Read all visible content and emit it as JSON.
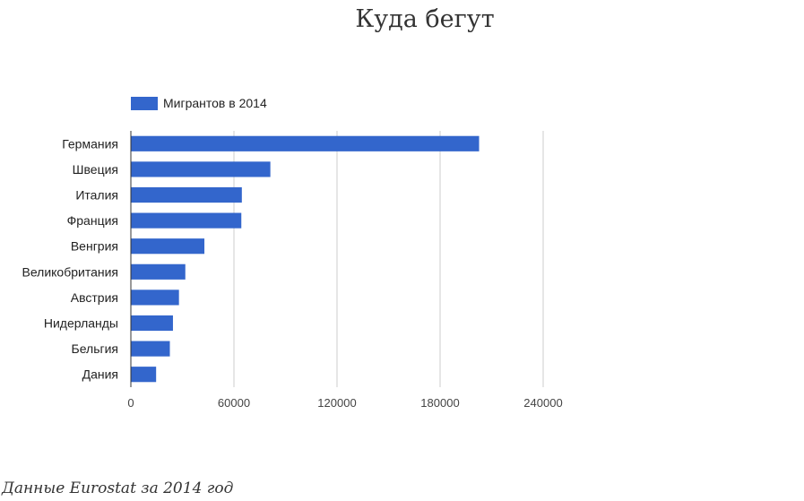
{
  "title": "Куда бегут",
  "footnote": "Данные Eurostat за 2014 год",
  "chart_data": {
    "type": "bar",
    "orientation": "horizontal",
    "categories": [
      "Германия",
      "Швеция",
      "Италия",
      "Франция",
      "Венгрия",
      "Великобритания",
      "Австрия",
      "Нидерланды",
      "Бельгия",
      "Дания"
    ],
    "series": [
      {
        "name": "Мигрантов в 2014",
        "color": "#3366cc",
        "values": [
          202700,
          81200,
          64600,
          64300,
          42800,
          31700,
          28000,
          24500,
          22700,
          14700
        ]
      }
    ],
    "xticks": [
      "0",
      "60000",
      "120000",
      "180000",
      "240000"
    ],
    "xlim": [
      0,
      240000
    ],
    "grid": true,
    "legend_position": "top-left"
  }
}
